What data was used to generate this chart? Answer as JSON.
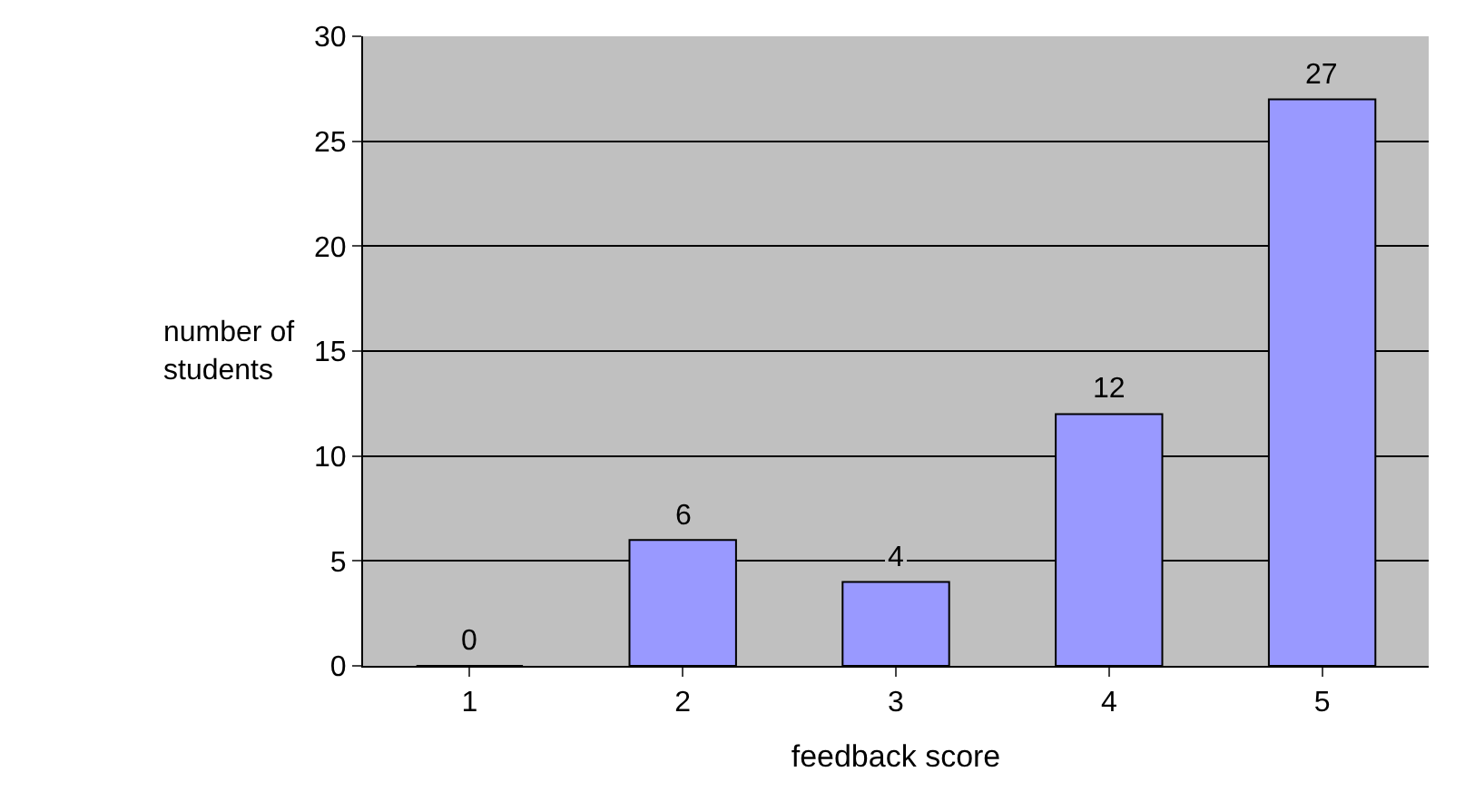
{
  "chart_data": {
    "type": "bar",
    "categories": [
      "1",
      "2",
      "3",
      "4",
      "5"
    ],
    "values": [
      0,
      6,
      4,
      12,
      27
    ],
    "color": "#9999ff",
    "data_labels": true,
    "xlabel": "feedback score",
    "ylabel": "number of students",
    "ylim": [
      0,
      30
    ],
    "yticks": [
      0,
      5,
      10,
      15,
      20,
      25,
      30
    ],
    "grid": "y",
    "legend": false
  }
}
